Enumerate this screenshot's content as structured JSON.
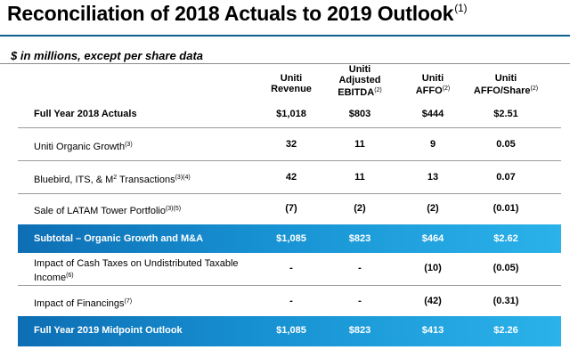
{
  "title": "Reconciliation of 2018 Actuals to 2019 Outlook",
  "title_note": "(1)",
  "subtitle": "$ in millions, except per share data",
  "columns": [
    {
      "lines": [
        "Uniti",
        "Revenue"
      ],
      "note": ""
    },
    {
      "lines": [
        "Uniti",
        "Adjusted",
        "EBITDA"
      ],
      "note": "(2)"
    },
    {
      "lines": [
        "Uniti",
        "AFFO"
      ],
      "note": "(2)"
    },
    {
      "lines": [
        "Uniti",
        "AFFO/Share"
      ],
      "note": "(2)"
    }
  ],
  "rows": [
    {
      "label": "Full Year 2018 Actuals",
      "note": "",
      "values": [
        "$1,018",
        "$803",
        "$444",
        "$2.51"
      ]
    },
    {
      "label": "Uniti Organic Growth",
      "note": "(3)",
      "values": [
        "32",
        "11",
        "9",
        "0.05"
      ]
    },
    {
      "label": "Bluebird, ITS, & M",
      "label_sup": "2",
      "label_rest": " Transactions",
      "note": "(3)(4)",
      "values": [
        "42",
        "11",
        "13",
        "0.07"
      ]
    },
    {
      "label": "Sale of LATAM Tower Portfolio",
      "note": "(3)(5)",
      "values": [
        "(7)",
        "(2)",
        "(2)",
        "(0.01)"
      ]
    },
    {
      "label": "Subtotal – Organic Growth and M&A",
      "note": "",
      "values": [
        "$1,085",
        "$823",
        "$464",
        "$2.62"
      ]
    },
    {
      "label_line1": "Impact of Cash Taxes on Undistributed Taxable",
      "label_line2": "Income",
      "note": "(6)",
      "values": [
        "-",
        "-",
        "(10)",
        "(0.05)"
      ]
    },
    {
      "label": "Impact of Financings",
      "note": "(7)",
      "values": [
        "-",
        "-",
        "(42)",
        "(0.31)"
      ]
    },
    {
      "label": "Full Year 2019 Midpoint Outlook",
      "note": "",
      "values": [
        "$1,085",
        "$823",
        "$413",
        "$2.26"
      ]
    }
  ],
  "colors": {
    "band_start": "#0e6eb4",
    "band_end": "#2bb2ea",
    "rule": "#0c5f8f"
  }
}
